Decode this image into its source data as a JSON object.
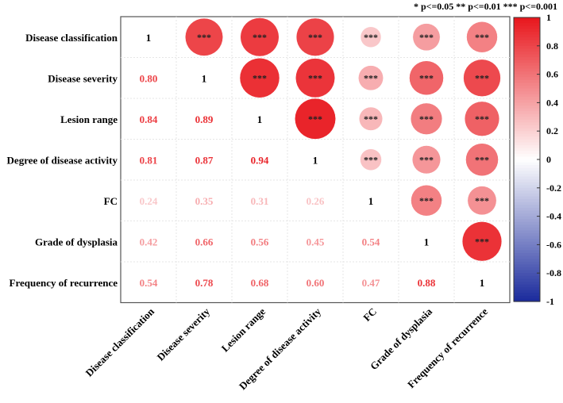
{
  "chart_data": {
    "type": "heatmap",
    "variables": [
      "Disease classification",
      "Disease severity",
      "Lesion range",
      "Degree of disease activity",
      "FC",
      "Grade of dysplasia",
      "Frequency of recurrence"
    ],
    "matrix": [
      [
        1,
        0.8,
        0.84,
        0.81,
        0.24,
        0.42,
        0.54
      ],
      [
        0.8,
        1,
        0.89,
        0.87,
        0.35,
        0.66,
        0.78
      ],
      [
        0.84,
        0.89,
        1,
        0.94,
        0.31,
        0.56,
        0.68
      ],
      [
        0.81,
        0.87,
        0.94,
        1,
        0.26,
        0.45,
        0.6
      ],
      [
        0.24,
        0.35,
        0.31,
        0.26,
        1,
        0.54,
        0.47
      ],
      [
        0.42,
        0.66,
        0.56,
        0.45,
        0.54,
        1,
        0.88
      ],
      [
        0.54,
        0.78,
        0.68,
        0.6,
        0.47,
        0.88,
        1
      ]
    ],
    "upper": "circle",
    "lower": "number",
    "significance_mark": "***",
    "significance_legend": "* p<=0.05  ** p<=0.01  *** p<=0.001",
    "colorbar": {
      "range": [
        -1,
        1
      ],
      "ticks": [
        "1",
        "0.8",
        "0.6",
        "0.4",
        "0.2",
        "0",
        "-0.2",
        "-0.4",
        "-0.6",
        "-0.8",
        "-1"
      ],
      "colors": {
        "low": "#1A2A9C",
        "mid": "#FFFFFF",
        "high": "#E8161C"
      }
    }
  }
}
